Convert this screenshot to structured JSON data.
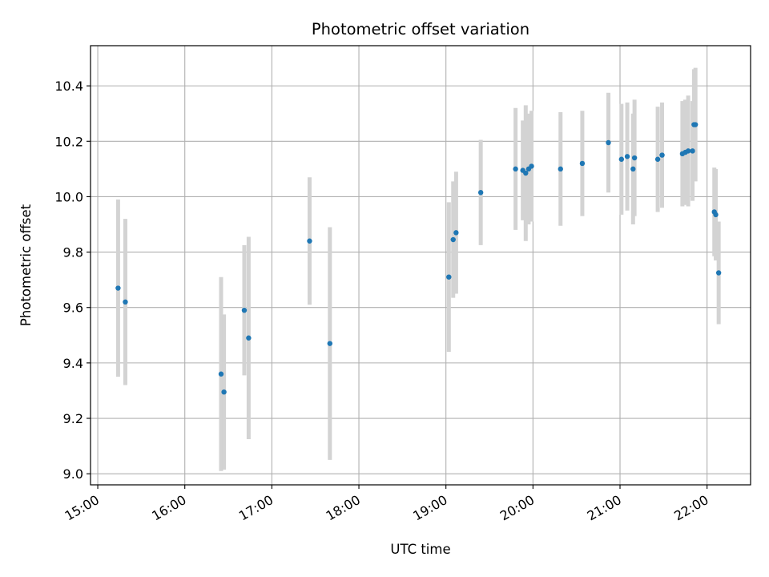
{
  "chart_data": {
    "type": "scatter",
    "title": "Photometric offset variation",
    "xlabel": "UTC time",
    "ylabel": "Photometric offset",
    "x_axis_type": "time",
    "xlim": [
      "14:55",
      "22:30"
    ],
    "ylim": [
      8.96,
      10.545
    ],
    "x_ticks": [
      "15:00",
      "16:00",
      "17:00",
      "18:00",
      "19:00",
      "20:00",
      "21:00",
      "22:00"
    ],
    "y_ticks": [
      "9.0",
      "9.2",
      "9.4",
      "9.6",
      "9.8",
      "10.0",
      "10.2",
      "10.4"
    ],
    "grid": true,
    "legend": false,
    "point_color": "#1f77b4",
    "errorbar_color": "#d3d3d3",
    "points": [
      {
        "time": "15:14",
        "y": 9.67,
        "err": 0.32
      },
      {
        "time": "15:19",
        "y": 9.62,
        "err": 0.3
      },
      {
        "time": "16:25",
        "y": 9.36,
        "err": 0.35
      },
      {
        "time": "16:27",
        "y": 9.295,
        "err": 0.28
      },
      {
        "time": "16:41",
        "y": 9.59,
        "err": 0.235
      },
      {
        "time": "16:44",
        "y": 9.49,
        "err": 0.365
      },
      {
        "time": "17:26",
        "y": 9.84,
        "err": 0.23
      },
      {
        "time": "17:40",
        "y": 9.47,
        "err": 0.42
      },
      {
        "time": "19:02",
        "y": 9.71,
        "err": 0.27
      },
      {
        "time": "19:05",
        "y": 9.845,
        "err": 0.21
      },
      {
        "time": "19:07",
        "y": 9.87,
        "err": 0.22
      },
      {
        "time": "19:24",
        "y": 10.015,
        "err": 0.19
      },
      {
        "time": "19:48",
        "y": 10.1,
        "err": 0.22
      },
      {
        "time": "19:53",
        "y": 10.095,
        "err": 0.18
      },
      {
        "time": "19:55",
        "y": 10.085,
        "err": 0.245
      },
      {
        "time": "19:57",
        "y": 10.1,
        "err": 0.2
      },
      {
        "time": "19:59",
        "y": 10.11,
        "err": 0.2
      },
      {
        "time": "20:19",
        "y": 10.1,
        "err": 0.205
      },
      {
        "time": "20:34",
        "y": 10.12,
        "err": 0.19
      },
      {
        "time": "20:52",
        "y": 10.195,
        "err": 0.18
      },
      {
        "time": "21:01",
        "y": 10.135,
        "err": 0.2
      },
      {
        "time": "21:05",
        "y": 10.145,
        "err": 0.195
      },
      {
        "time": "21:09",
        "y": 10.1,
        "err": 0.2
      },
      {
        "time": "21:10",
        "y": 10.14,
        "err": 0.21
      },
      {
        "time": "21:26",
        "y": 10.135,
        "err": 0.19
      },
      {
        "time": "21:29",
        "y": 10.15,
        "err": 0.19
      },
      {
        "time": "21:43",
        "y": 10.155,
        "err": 0.19
      },
      {
        "time": "21:45",
        "y": 10.16,
        "err": 0.19
      },
      {
        "time": "21:47",
        "y": 10.165,
        "err": 0.2
      },
      {
        "time": "21:50",
        "y": 10.165,
        "err": 0.18
      },
      {
        "time": "21:51",
        "y": 10.26,
        "err": 0.2
      },
      {
        "time": "21:52",
        "y": 10.26,
        "err": 0.205
      },
      {
        "time": "22:05",
        "y": 9.945,
        "err": 0.16
      },
      {
        "time": "22:06",
        "y": 9.935,
        "err": 0.165
      },
      {
        "time": "22:08",
        "y": 9.725,
        "err": 0.185
      }
    ]
  }
}
